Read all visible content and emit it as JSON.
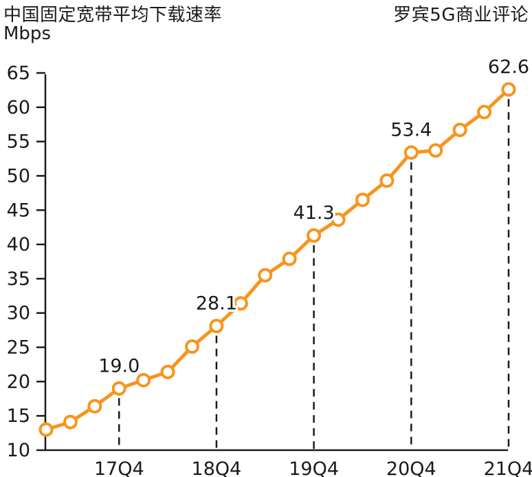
{
  "header": {
    "title": "中国固定宽带平均下载速率",
    "unit": "Mbps",
    "source": "罗宾5G商业评论"
  },
  "chart_data": {
    "type": "line",
    "title": "中国固定宽带平均下载速率",
    "ylabel": "Mbps",
    "source": "罗宾5G商业评论",
    "x": [
      "17Q1",
      "17Q2",
      "17Q3",
      "17Q4",
      "18Q1",
      "18Q2",
      "18Q3",
      "18Q4",
      "19Q1",
      "19Q2",
      "19Q3",
      "19Q4",
      "20Q1",
      "20Q2",
      "20Q3",
      "20Q4",
      "21Q1",
      "21Q2",
      "21Q3",
      "21Q4"
    ],
    "values": [
      13.0,
      14.1,
      16.4,
      19.0,
      20.2,
      21.4,
      25.1,
      28.1,
      31.4,
      35.5,
      37.9,
      41.3,
      43.6,
      46.5,
      49.3,
      53.4,
      53.7,
      56.7,
      59.3,
      62.6
    ],
    "x_tick_labels": [
      "17Q4",
      "18Q4",
      "19Q4",
      "20Q4",
      "21Q4"
    ],
    "y_tick_labels": [
      "10",
      "15",
      "20",
      "25",
      "30",
      "35",
      "40",
      "45",
      "50",
      "55",
      "60",
      "65"
    ],
    "ylim": [
      10,
      65
    ],
    "ytick_step": 5,
    "grid": false,
    "legend": "none",
    "labeled_points": [
      {
        "x": "17Q4",
        "label": "19.0"
      },
      {
        "x": "18Q4",
        "label": "28.1"
      },
      {
        "x": "19Q4",
        "label": "41.3"
      },
      {
        "x": "20Q4",
        "label": "53.4"
      },
      {
        "x": "21Q4",
        "label": "62.6"
      }
    ],
    "colors": {
      "line": "#F8941D",
      "marker_fill": "#FFFFFF",
      "axis": "#1A1A1A",
      "text": "#1A1A1A",
      "guide": "#1A1A1A"
    }
  }
}
